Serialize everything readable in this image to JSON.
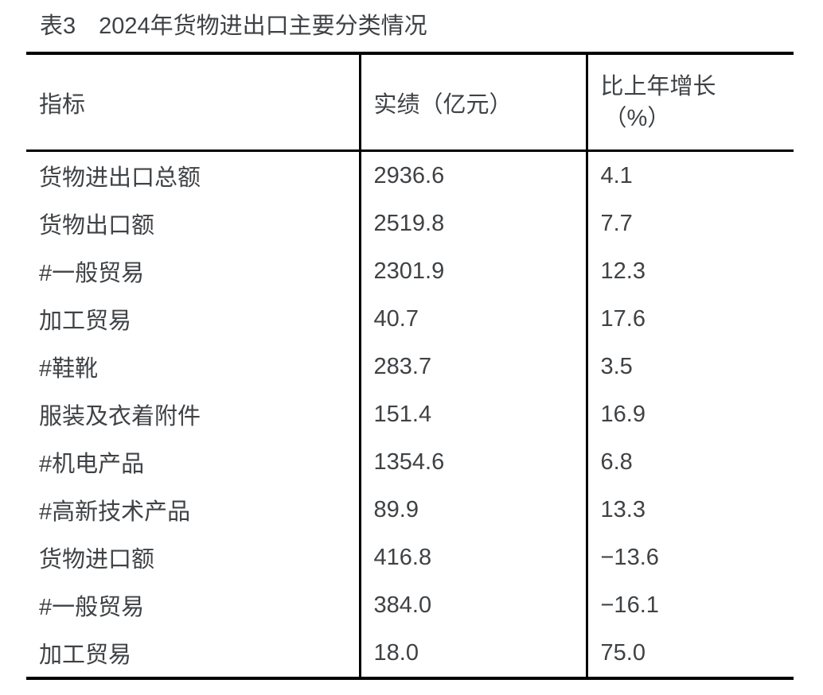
{
  "title": "表3　2024年货物进出口主要分类情况",
  "table": {
    "headers": {
      "indicator": "指标",
      "value": "实绩（亿元）",
      "growth_line1": "比上年增长",
      "growth_line2": "（%）"
    },
    "rows": [
      {
        "indicator": "货物进出口总额",
        "value": "2936.6",
        "growth": "4.1"
      },
      {
        "indicator": "货物出口额",
        "value": "2519.8",
        "growth": "7.7"
      },
      {
        "indicator": "#一般贸易",
        "value": "2301.9",
        "growth": "12.3"
      },
      {
        "indicator": "加工贸易",
        "value": "40.7",
        "growth": "17.6"
      },
      {
        "indicator": "#鞋靴",
        "value": "283.7",
        "growth": "3.5"
      },
      {
        "indicator": "服装及衣着附件",
        "value": "151.4",
        "growth": "16.9"
      },
      {
        "indicator": "#机电产品",
        "value": "1354.6",
        "growth": "6.8"
      },
      {
        "indicator": "#高新技术产品",
        "value": "89.9",
        "growth": "13.3"
      },
      {
        "indicator": "货物进口额",
        "value": "416.8",
        "growth": "−13.6"
      },
      {
        "indicator": "#一般贸易",
        "value": "384.0",
        "growth": "−16.1"
      },
      {
        "indicator": "加工贸易",
        "value": "18.0",
        "growth": "75.0"
      }
    ]
  },
  "colors": {
    "text": "#3f4245",
    "border": "#000000",
    "background": "#ffffff"
  }
}
